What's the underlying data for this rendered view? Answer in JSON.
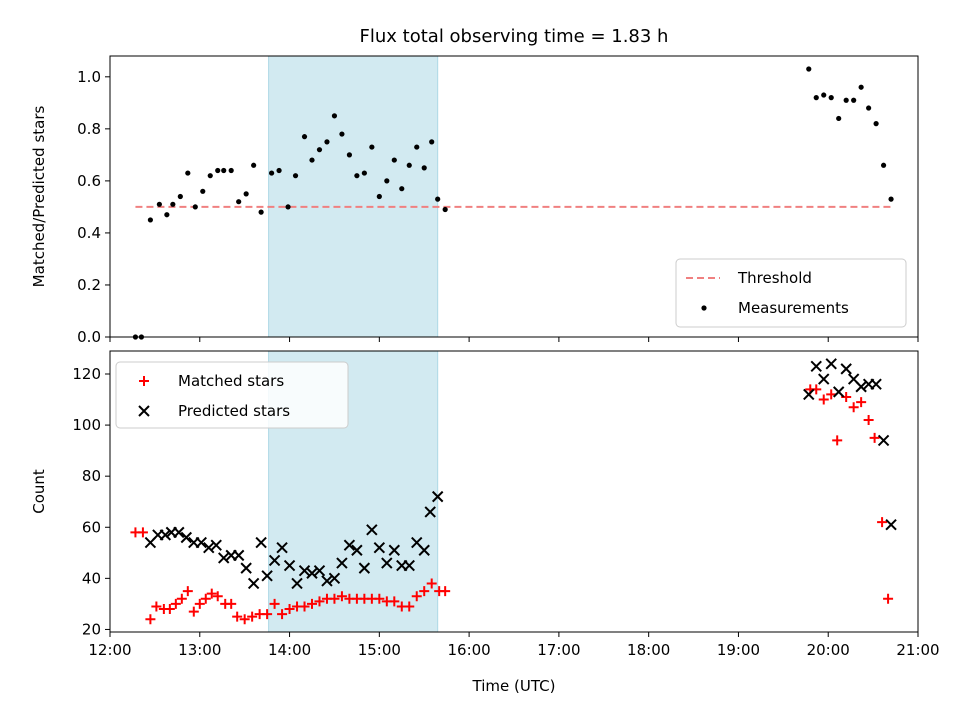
{
  "chart_data": [
    {
      "type": "scatter",
      "title": "Flux total observing time = 1.83 h",
      "xlabel": "",
      "ylabel": "Matched/Predicted stars",
      "xlim": [
        "12:00",
        "21:00"
      ],
      "ylim": [
        0.0,
        1.08
      ],
      "yticks": [
        "0.0",
        "0.2",
        "0.4",
        "0.6",
        "0.8",
        "1.0"
      ],
      "shaded_span": [
        "13:46",
        "15:39"
      ],
      "legend_placement": "lower-right",
      "grid": false,
      "threshold": {
        "name": "Threshold",
        "value": 0.5,
        "x_range": [
          "12:17",
          "20:42"
        ],
        "color": "#f08080"
      },
      "series": [
        {
          "name": "Measurements",
          "marker": "dot",
          "color": "#000000",
          "points": [
            [
              "12:17",
              0.0
            ],
            [
              "12:21",
              0.0
            ],
            [
              "12:27",
              0.45
            ],
            [
              "12:33",
              0.51
            ],
            [
              "12:38",
              0.47
            ],
            [
              "12:42",
              0.51
            ],
            [
              "12:47",
              0.54
            ],
            [
              "12:52",
              0.63
            ],
            [
              "12:57",
              0.5
            ],
            [
              "13:02",
              0.56
            ],
            [
              "13:07",
              0.62
            ],
            [
              "13:12",
              0.64
            ],
            [
              "13:16",
              0.64
            ],
            [
              "13:21",
              0.64
            ],
            [
              "13:26",
              0.52
            ],
            [
              "13:31",
              0.55
            ],
            [
              "13:36",
              0.66
            ],
            [
              "13:41",
              0.48
            ],
            [
              "13:48",
              0.63
            ],
            [
              "13:53",
              0.64
            ],
            [
              "13:59",
              0.5
            ],
            [
              "14:04",
              0.62
            ],
            [
              "14:10",
              0.77
            ],
            [
              "14:15",
              0.68
            ],
            [
              "14:20",
              0.72
            ],
            [
              "14:25",
              0.75
            ],
            [
              "14:30",
              0.85
            ],
            [
              "14:35",
              0.78
            ],
            [
              "14:40",
              0.7
            ],
            [
              "14:45",
              0.62
            ],
            [
              "14:50",
              0.63
            ],
            [
              "14:55",
              0.73
            ],
            [
              "15:00",
              0.54
            ],
            [
              "15:05",
              0.6
            ],
            [
              "15:10",
              0.68
            ],
            [
              "15:15",
              0.57
            ],
            [
              "15:20",
              0.66
            ],
            [
              "15:25",
              0.73
            ],
            [
              "15:30",
              0.65
            ],
            [
              "15:35",
              0.75
            ],
            [
              "15:39",
              0.53
            ],
            [
              "15:44",
              0.49
            ],
            [
              "19:47",
              1.03
            ],
            [
              "19:52",
              0.92
            ],
            [
              "19:57",
              0.93
            ],
            [
              "20:02",
              0.92
            ],
            [
              "20:07",
              0.84
            ],
            [
              "20:12",
              0.91
            ],
            [
              "20:17",
              0.91
            ],
            [
              "20:22",
              0.96
            ],
            [
              "20:27",
              0.88
            ],
            [
              "20:32",
              0.82
            ],
            [
              "20:37",
              0.66
            ],
            [
              "20:42",
              0.53
            ]
          ]
        }
      ]
    },
    {
      "type": "scatter",
      "title": "",
      "xlabel": "Time (UTC)",
      "ylabel": "Count",
      "xlim": [
        "12:00",
        "21:00"
      ],
      "xticks": [
        "12:00",
        "13:00",
        "14:00",
        "15:00",
        "16:00",
        "17:00",
        "18:00",
        "19:00",
        "20:00",
        "21:00"
      ],
      "ylim": [
        19,
        129
      ],
      "yticks": [
        "20",
        "40",
        "60",
        "80",
        "100",
        "120"
      ],
      "shaded_span": [
        "13:46",
        "15:39"
      ],
      "legend_placement": "upper-left",
      "grid": false,
      "series": [
        {
          "name": "Matched stars",
          "marker": "plus",
          "color": "#ff0000",
          "points": [
            [
              "12:17",
              58
            ],
            [
              "12:22",
              58
            ],
            [
              "12:27",
              24
            ],
            [
              "12:31",
              29
            ],
            [
              "12:36",
              28
            ],
            [
              "12:40",
              28
            ],
            [
              "12:44",
              30
            ],
            [
              "12:48",
              32
            ],
            [
              "12:52",
              35
            ],
            [
              "12:56",
              27
            ],
            [
              "13:00",
              30
            ],
            [
              "13:04",
              32
            ],
            [
              "13:08",
              34
            ],
            [
              "13:12",
              33
            ],
            [
              "13:17",
              30
            ],
            [
              "13:21",
              30
            ],
            [
              "13:25",
              25
            ],
            [
              "13:30",
              24
            ],
            [
              "13:35",
              25
            ],
            [
              "13:40",
              26
            ],
            [
              "13:45",
              26
            ],
            [
              "13:50",
              30
            ],
            [
              "13:55",
              26
            ],
            [
              "14:00",
              28
            ],
            [
              "14:05",
              29
            ],
            [
              "14:10",
              29
            ],
            [
              "14:15",
              30
            ],
            [
              "14:20",
              31
            ],
            [
              "14:25",
              32
            ],
            [
              "14:30",
              32
            ],
            [
              "14:35",
              33
            ],
            [
              "14:40",
              32
            ],
            [
              "14:45",
              32
            ],
            [
              "14:50",
              32
            ],
            [
              "14:55",
              32
            ],
            [
              "15:00",
              32
            ],
            [
              "15:05",
              31
            ],
            [
              "15:10",
              31
            ],
            [
              "15:15",
              29
            ],
            [
              "15:20",
              29
            ],
            [
              "15:25",
              33
            ],
            [
              "15:30",
              35
            ],
            [
              "15:35",
              38
            ],
            [
              "15:40",
              35
            ],
            [
              "15:44",
              35
            ],
            [
              "19:48",
              114
            ],
            [
              "19:52",
              114
            ],
            [
              "19:57",
              110
            ],
            [
              "20:02",
              112
            ],
            [
              "20:06",
              94
            ],
            [
              "20:12",
              111
            ],
            [
              "20:17",
              107
            ],
            [
              "20:22",
              109
            ],
            [
              "20:27",
              102
            ],
            [
              "20:31",
              95
            ],
            [
              "20:36",
              62
            ],
            [
              "20:40",
              32
            ]
          ]
        },
        {
          "name": "Predicted stars",
          "marker": "x",
          "color": "#000000",
          "points": [
            [
              "12:27",
              54
            ],
            [
              "12:32",
              57
            ],
            [
              "12:37",
              57
            ],
            [
              "12:41",
              58
            ],
            [
              "12:46",
              58
            ],
            [
              "12:51",
              56
            ],
            [
              "12:56",
              54
            ],
            [
              "13:01",
              54
            ],
            [
              "13:06",
              52
            ],
            [
              "13:11",
              53
            ],
            [
              "13:16",
              48
            ],
            [
              "13:21",
              49
            ],
            [
              "13:26",
              49
            ],
            [
              "13:31",
              44
            ],
            [
              "13:36",
              38
            ],
            [
              "13:41",
              54
            ],
            [
              "13:45",
              41
            ],
            [
              "13:50",
              47
            ],
            [
              "13:55",
              52
            ],
            [
              "14:00",
              45
            ],
            [
              "14:05",
              38
            ],
            [
              "14:10",
              43
            ],
            [
              "14:15",
              42
            ],
            [
              "14:20",
              43
            ],
            [
              "14:25",
              39
            ],
            [
              "14:30",
              40
            ],
            [
              "14:35",
              46
            ],
            [
              "14:40",
              53
            ],
            [
              "14:45",
              51
            ],
            [
              "14:50",
              44
            ],
            [
              "14:55",
              59
            ],
            [
              "15:00",
              52
            ],
            [
              "15:05",
              46
            ],
            [
              "15:10",
              51
            ],
            [
              "15:15",
              45
            ],
            [
              "15:20",
              45
            ],
            [
              "15:25",
              54
            ],
            [
              "15:30",
              51
            ],
            [
              "15:34",
              66
            ],
            [
              "15:39",
              72
            ],
            [
              "19:47",
              112
            ],
            [
              "19:52",
              123
            ],
            [
              "19:57",
              118
            ],
            [
              "20:02",
              124
            ],
            [
              "20:07",
              113
            ],
            [
              "20:12",
              122
            ],
            [
              "20:17",
              118
            ],
            [
              "20:22",
              115
            ],
            [
              "20:27",
              116
            ],
            [
              "20:32",
              116
            ],
            [
              "20:37",
              94
            ],
            [
              "20:42",
              61
            ]
          ]
        }
      ]
    }
  ]
}
